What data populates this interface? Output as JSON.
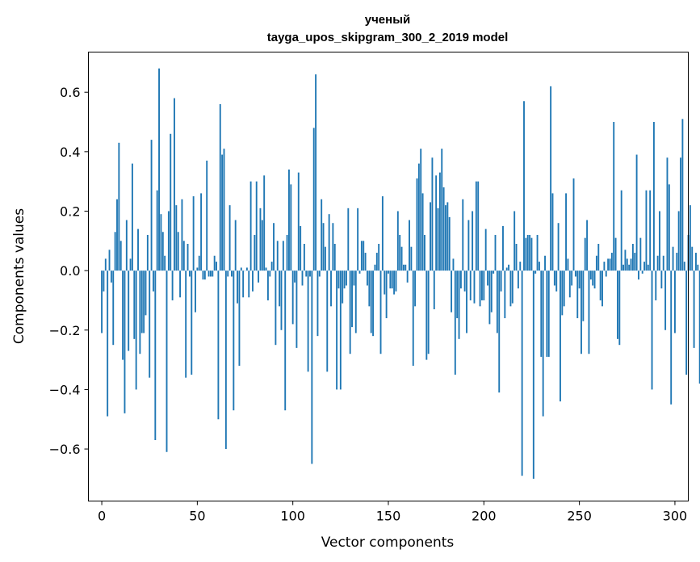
{
  "chart_data": {
    "type": "bar",
    "title": "ученый",
    "subtitle": "tayga_upos_skipgram_300_2_2019 model",
    "xlabel": "Vector components",
    "ylabel": "Components values",
    "xlim": [
      -7,
      307
    ],
    "ylim": [
      -0.775,
      0.735
    ],
    "x_ticks": [
      0,
      50,
      100,
      150,
      200,
      250,
      300
    ],
    "x_tick_labels": [
      "0",
      "50",
      "100",
      "150",
      "200",
      "250",
      "300"
    ],
    "y_ticks": [
      -0.6,
      -0.4,
      -0.2,
      0.0,
      0.2,
      0.4,
      0.6
    ],
    "y_tick_labels": [
      "−0.6",
      "−0.4",
      "−0.2",
      "0.0",
      "0.2",
      "0.4",
      "0.6"
    ],
    "bar_color": "#1f77b4",
    "values": [
      -0.21,
      -0.07,
      0.04,
      -0.49,
      0.07,
      -0.04,
      -0.25,
      0.13,
      0.24,
      0.43,
      0.1,
      -0.3,
      -0.48,
      0.17,
      -0.27,
      0.04,
      0.36,
      -0.23,
      -0.4,
      0.14,
      -0.28,
      -0.21,
      -0.21,
      -0.15,
      0.12,
      -0.36,
      0.44,
      -0.07,
      -0.57,
      0.27,
      0.68,
      0.19,
      0.13,
      0.05,
      -0.61,
      0.2,
      0.46,
      -0.1,
      0.58,
      0.22,
      0.13,
      -0.09,
      0.24,
      0.1,
      -0.36,
      0.09,
      -0.02,
      -0.35,
      0.25,
      -0.14,
      0.01,
      0.05,
      0.26,
      -0.03,
      -0.03,
      0.37,
      -0.02,
      -0.02,
      -0.02,
      0.05,
      0.03,
      -0.5,
      0.56,
      0.39,
      0.41,
      -0.6,
      -0.02,
      0.22,
      -0.02,
      -0.47,
      0.17,
      -0.11,
      -0.32,
      0.01,
      -0.09,
      0.0,
      0.01,
      -0.09,
      0.3,
      -0.07,
      0.12,
      0.3,
      -0.04,
      0.21,
      0.17,
      0.32,
      0.01,
      -0.1,
      -0.02,
      0.03,
      0.16,
      -0.25,
      0.1,
      -0.12,
      -0.2,
      0.1,
      -0.47,
      0.12,
      0.34,
      0.29,
      -0.18,
      -0.04,
      -0.26,
      0.33,
      0.15,
      -0.05,
      0.09,
      -0.02,
      -0.34,
      -0.02,
      -0.65,
      0.48,
      0.66,
      -0.22,
      -0.02,
      0.24,
      0.16,
      0.08,
      -0.34,
      0.19,
      -0.12,
      0.16,
      0.09,
      -0.4,
      -0.06,
      -0.4,
      -0.11,
      -0.06,
      -0.05,
      0.21,
      -0.28,
      -0.19,
      -0.05,
      -0.21,
      0.21,
      -0.01,
      0.1,
      0.1,
      0.06,
      -0.05,
      -0.12,
      -0.21,
      -0.22,
      0.02,
      0.06,
      0.09,
      -0.28,
      0.25,
      -0.08,
      -0.16,
      -0.01,
      -0.06,
      -0.06,
      -0.08,
      -0.07,
      0.2,
      0.12,
      0.08,
      0.02,
      0.02,
      -0.04,
      0.17,
      0.08,
      -0.32,
      -0.12,
      0.31,
      0.36,
      0.41,
      0.26,
      0.12,
      -0.3,
      -0.28,
      0.23,
      0.38,
      -0.13,
      0.32,
      0.21,
      0.33,
      0.41,
      0.28,
      0.22,
      0.23,
      0.18,
      -0.14,
      0.04,
      -0.35,
      -0.16,
      -0.23,
      -0.06,
      0.24,
      -0.07,
      -0.21,
      0.17,
      -0.1,
      0.2,
      -0.11,
      0.3,
      0.3,
      -0.12,
      -0.1,
      -0.1,
      0.14,
      -0.05,
      -0.18,
      -0.14,
      -0.01,
      0.12,
      -0.21,
      -0.41,
      -0.07,
      0.15,
      -0.16,
      0.01,
      0.02,
      -0.12,
      -0.11,
      0.2,
      0.09,
      -0.06,
      0.03,
      -0.69,
      0.57,
      0.11,
      0.12,
      0.12,
      0.11,
      -0.7,
      -0.01,
      0.12,
      0.03,
      -0.29,
      -0.49,
      0.05,
      -0.29,
      -0.29,
      0.62,
      0.26,
      -0.05,
      -0.07,
      0.16,
      -0.44,
      -0.15,
      -0.12,
      0.26,
      0.04,
      -0.09,
      -0.05,
      0.31,
      -0.02,
      -0.16,
      -0.06,
      -0.28,
      -0.17,
      0.11,
      0.17,
      -0.28,
      -0.03,
      -0.05,
      -0.06,
      0.05,
      0.09,
      -0.1,
      -0.12,
      0.03,
      -0.02,
      0.04,
      0.04,
      0.06,
      0.5,
      0.11,
      -0.23,
      -0.25,
      0.27,
      0.02,
      0.07,
      0.04,
      0.02,
      0.04,
      0.09,
      0.06,
      0.39,
      -0.03,
      0.11,
      -0.01,
      0.03,
      0.27,
      0.02,
      0.27,
      -0.4,
      0.5,
      -0.1,
      0.05,
      0.2,
      -0.06,
      0.05,
      -0.2,
      0.38,
      0.29,
      -0.45,
      0.08,
      -0.21,
      0.06,
      0.2,
      0.38,
      0.51,
      0.03,
      -0.35,
      0.12,
      0.22,
      0.08,
      -0.26,
      0.06,
      0.02,
      -0.38
    ]
  }
}
